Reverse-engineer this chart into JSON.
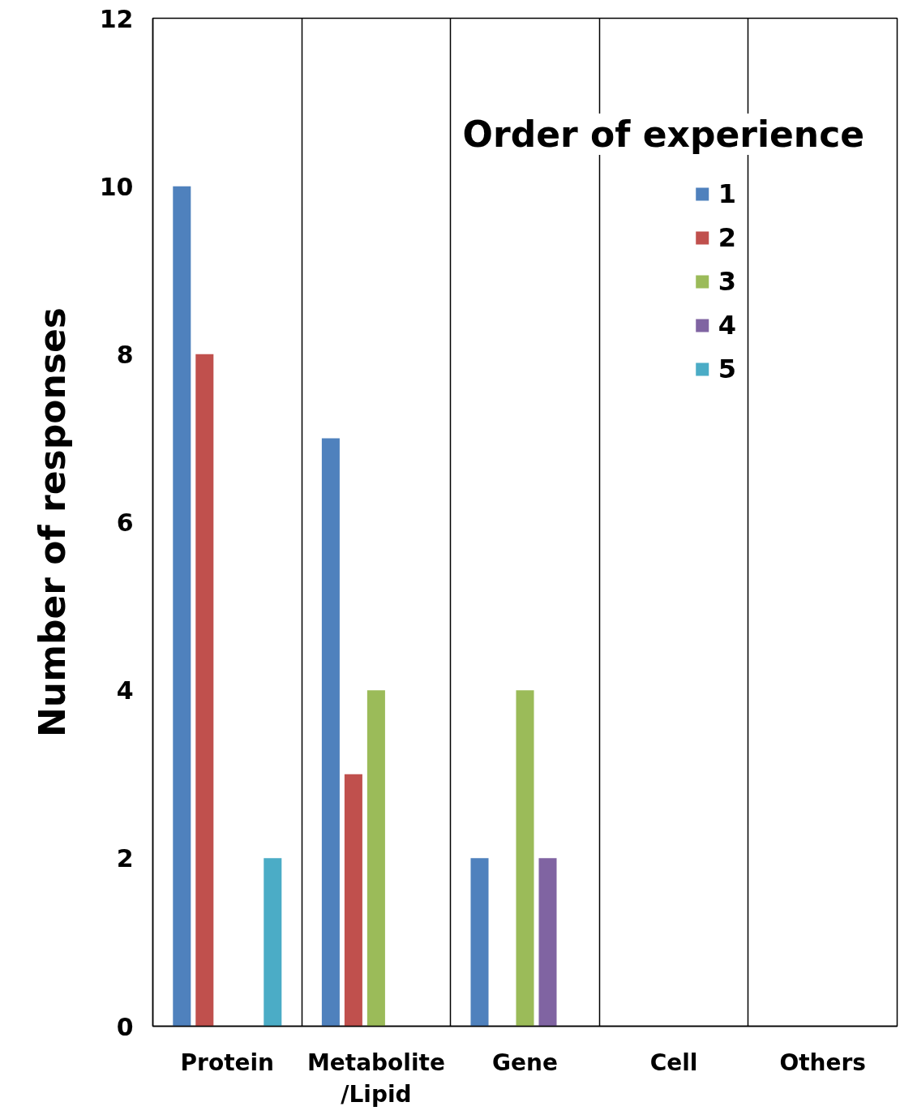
{
  "chart_data": {
    "type": "bar",
    "ylabel": "Number of responses",
    "legend_title": "Order of experience",
    "categories": [
      "Protein",
      "Metabolite\n/Lipid",
      "Gene",
      "Cell",
      "Others"
    ],
    "series": [
      {
        "name": "1",
        "color": "#4f81bd",
        "values": [
          10,
          7,
          2,
          0,
          0
        ]
      },
      {
        "name": "2",
        "color": "#c0504d",
        "values": [
          8,
          3,
          0,
          0,
          0
        ]
      },
      {
        "name": "3",
        "color": "#9bbb59",
        "values": [
          0,
          4,
          4,
          0,
          0
        ]
      },
      {
        "name": "4",
        "color": "#8064a2",
        "values": [
          0,
          0,
          2,
          0,
          0
        ]
      },
      {
        "name": "5",
        "color": "#4bacc6",
        "values": [
          2,
          0,
          0,
          0,
          0
        ]
      }
    ],
    "ylim": [
      0,
      12
    ],
    "yticks": [
      0,
      2,
      4,
      6,
      8,
      10,
      12
    ],
    "grid": "x",
    "legend": "top right"
  }
}
